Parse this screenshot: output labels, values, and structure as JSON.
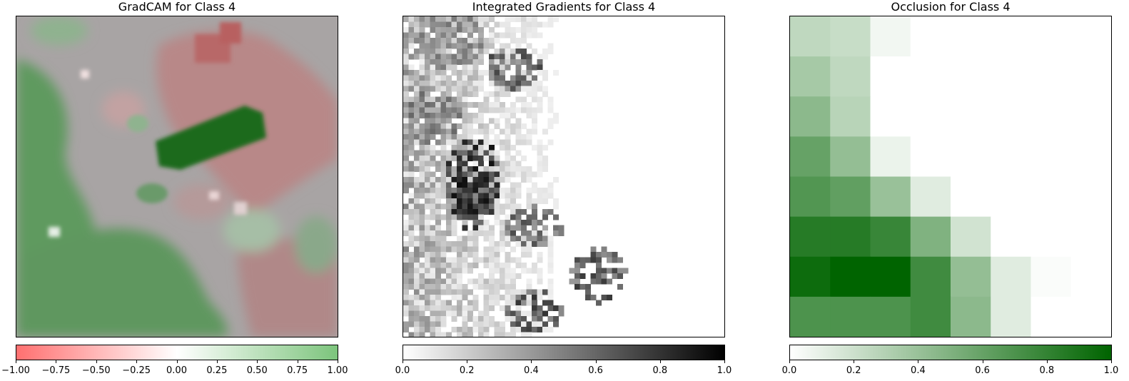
{
  "chart_data": [
    {
      "type": "heatmap",
      "title": "GradCAM for Class 4",
      "colormap": {
        "low": "#ff7070",
        "mid": "#ffffff",
        "high": "#7cc47c"
      },
      "colorbar": {
        "range": [
          -1.0,
          1.0
        ],
        "ticks": [
          "−1.00",
          "−0.75",
          "−0.50",
          "−0.25",
          "0.00",
          "0.25",
          "0.50",
          "0.75",
          "1.00"
        ]
      },
      "regions": [
        {
          "label": "left field",
          "value": 0.8
        },
        {
          "label": "bottom-left field",
          "value": 0.75
        },
        {
          "label": "central strip",
          "value": 1.0
        },
        {
          "label": "top-right roofs",
          "value": -0.6
        },
        {
          "label": "bottom-right roofs",
          "value": -0.4
        }
      ]
    },
    {
      "type": "heatmap",
      "title": "Integrated Gradients for Class 4",
      "colormap": {
        "low": "#ffffff",
        "high": "#000000"
      },
      "colorbar": {
        "range": [
          0.0,
          1.0
        ],
        "ticks": [
          "0.0",
          "0.2",
          "0.4",
          "0.6",
          "0.8",
          "1.0"
        ]
      }
    },
    {
      "type": "heatmap",
      "title": "Occlusion for Class 4",
      "colormap": {
        "low": "#ffffff",
        "high": "#006400"
      },
      "colorbar": {
        "range": [
          0.0,
          1.0
        ],
        "ticks": [
          "0.0",
          "0.2",
          "0.4",
          "0.6",
          "0.8",
          "1.0"
        ]
      },
      "grid": [
        [
          0.25,
          0.22,
          0.05,
          0.0,
          0.0,
          0.0,
          0.0,
          0.0
        ],
        [
          0.35,
          0.25,
          0.0,
          0.0,
          0.0,
          0.0,
          0.0,
          0.0
        ],
        [
          0.45,
          0.28,
          0.0,
          0.0,
          0.0,
          0.0,
          0.0,
          0.0
        ],
        [
          0.6,
          0.42,
          0.08,
          0.0,
          0.0,
          0.0,
          0.0,
          0.0
        ],
        [
          0.68,
          0.62,
          0.4,
          0.12,
          0.0,
          0.0,
          0.0,
          0.0
        ],
        [
          0.85,
          0.85,
          0.78,
          0.5,
          0.18,
          0.0,
          0.0,
          0.0
        ],
        [
          0.95,
          1.0,
          1.0,
          0.75,
          0.42,
          0.12,
          0.02,
          0.0
        ],
        [
          0.7,
          0.7,
          0.7,
          0.75,
          0.45,
          0.12,
          0.0,
          0.0
        ]
      ]
    }
  ]
}
